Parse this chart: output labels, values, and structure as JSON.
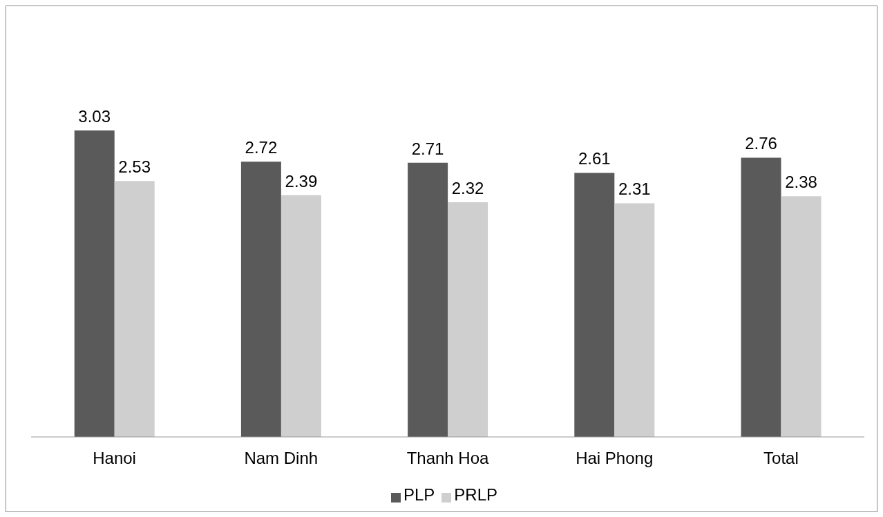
{
  "chart_data": {
    "type": "bar",
    "categories": [
      "Hanoi",
      "Nam Dinh",
      "Thanh Hoa",
      "Hai Phong",
      "Total"
    ],
    "series": [
      {
        "name": "PLP",
        "color": "#5a5a5a",
        "values": [
          3.03,
          2.72,
          2.71,
          2.61,
          2.76
        ]
      },
      {
        "name": "PRLP",
        "color": "#cfcfcf",
        "values": [
          2.53,
          2.39,
          2.32,
          2.31,
          2.38
        ]
      }
    ],
    "data_labels": true,
    "grid": false,
    "legend": "bottom"
  }
}
